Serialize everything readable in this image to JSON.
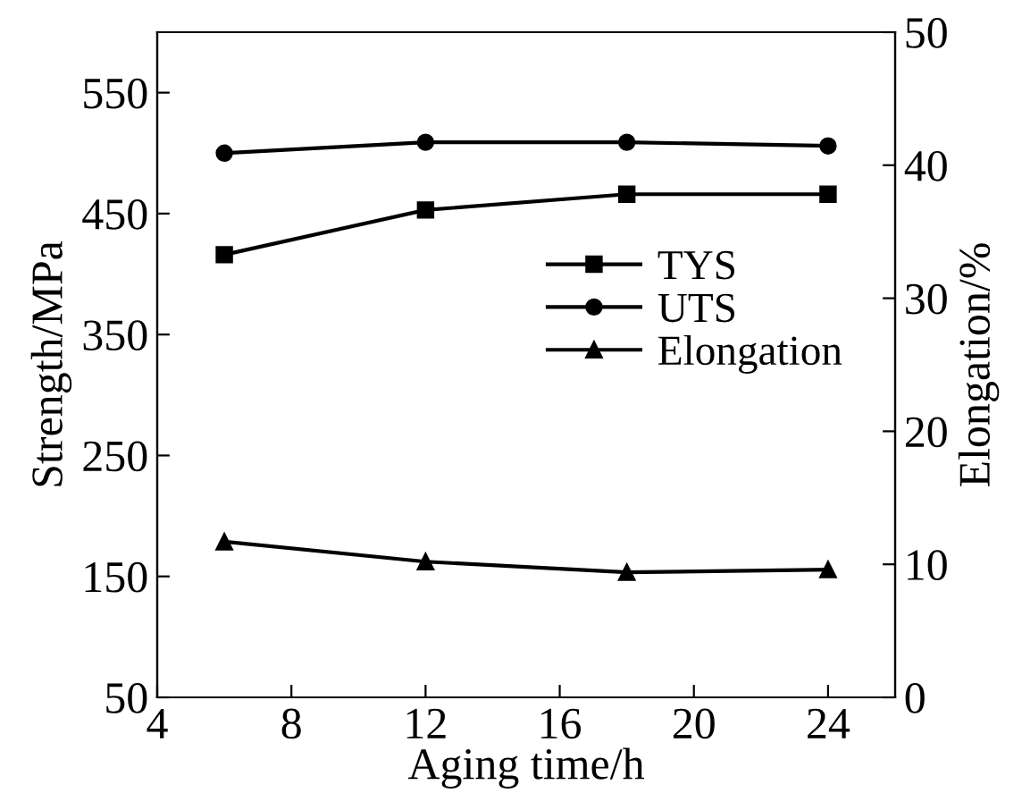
{
  "chart_data": {
    "type": "line",
    "xlabel": "Aging time/h",
    "ylabel": "Strength/MPa",
    "y2label": "Elongation/%",
    "x": [
      6,
      12,
      18,
      24
    ],
    "series": [
      {
        "name": "TYS",
        "color": "#000000",
        "marker": "square",
        "values": [
          416,
          453,
          466,
          466
        ]
      },
      {
        "name": "UTS",
        "color": "#000000",
        "marker": "circle",
        "values": [
          500,
          509,
          509,
          506
        ]
      },
      {
        "name": "Elongation",
        "color": "#000000",
        "marker": "triangle",
        "axis": "y2",
        "values": [
          11.7,
          10.2,
          9.4,
          9.6
        ]
      }
    ],
    "xlim": [
      4,
      26
    ],
    "xticks": [
      4,
      8,
      12,
      16,
      20,
      24
    ],
    "ylim": [
      50,
      600
    ],
    "yticks": [
      50,
      150,
      250,
      350,
      450,
      550
    ],
    "y2lim": [
      0,
      50
    ],
    "y2ticks": [
      0,
      10,
      20,
      30,
      40,
      50
    ],
    "line_style": "solid",
    "grid": false,
    "legend": "right"
  }
}
